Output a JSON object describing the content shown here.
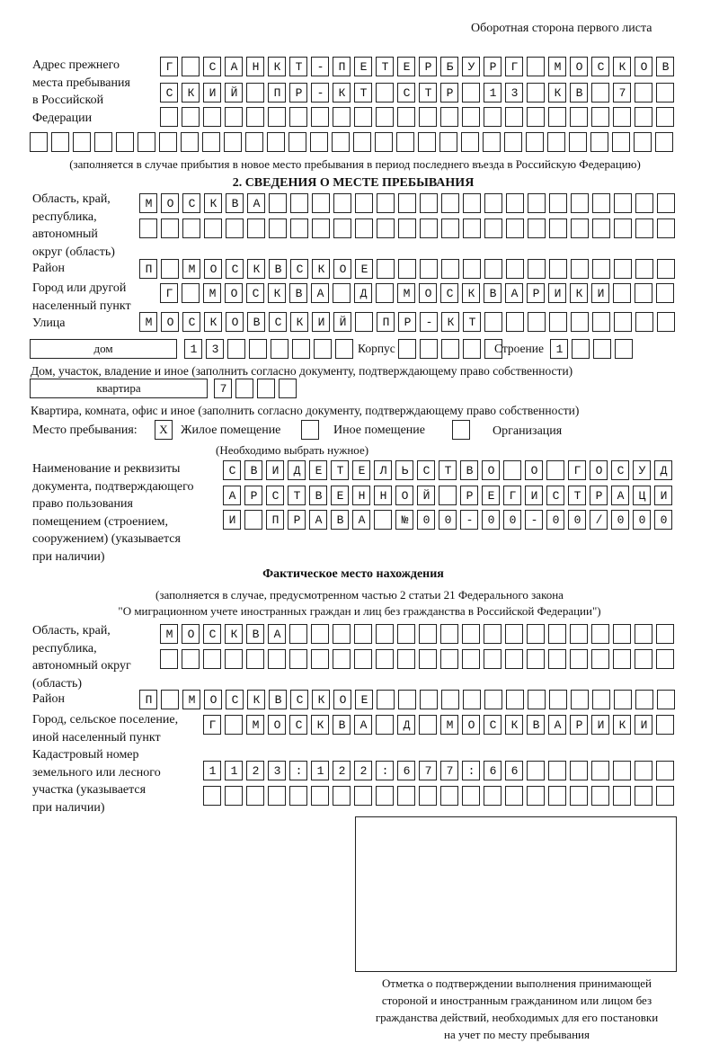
{
  "header": "Оборотная сторона первого листа",
  "previous_address": {
    "label": [
      "Адрес прежнего",
      "места пребывания",
      "в Российской",
      "Федерации"
    ],
    "rows": [
      "Г САНКТ-ПЕТЕРБУРГ МОСКОВ",
      "СКИЙ ПР-КТ СТР 13 КВ 7",
      "",
      ""
    ],
    "note": "(заполняется в случае прибытия в новое место пребывания в период последнего въезда в Российскую Федерацию)"
  },
  "section2": {
    "title": "2. СВЕДЕНИЯ О МЕСТЕ ПРЕБЫВАНИЯ",
    "region_label": [
      "Область, край,",
      "республика,",
      "автономный",
      "округ (область)"
    ],
    "region_rows": [
      "МОСКВА",
      ""
    ],
    "district_label": "Район",
    "district": "П МОСКВСКОЕ",
    "city_label": [
      "Город или другой",
      "населенный пункт"
    ],
    "city": "Г МОСКВА Д МОСКВАРИКИ",
    "street_label": "Улица",
    "street": "МОСКОВСКИЙ ПР-КТ",
    "house_type": "дом",
    "house": "13",
    "korpus_label": "Корпус",
    "korpus": "",
    "building_label": "Строение",
    "building": "1",
    "house_note": "Дом, участок, владение и иное (заполнить согласно документу, подтверждающему право собственности)",
    "apt_type": "квартира",
    "apt": "7",
    "apt_note": "Квартира, комната, офис и иное (заполнить согласно документу, подтверждающему право собственности)",
    "stay_label": "Место пребывания:",
    "stay_options": [
      {
        "label": "Жилое помещение",
        "mark": "X"
      },
      {
        "label": "Иное помещение",
        "mark": ""
      },
      {
        "label": "Организация",
        "mark": ""
      }
    ],
    "stay_note": "(Необходимо выбрать нужное)",
    "doc_label": [
      "Наименование и реквизиты",
      "документа, подтверждающего",
      "право пользования",
      "помещением (строением,",
      "сооружением) (указывается",
      "при наличии)"
    ],
    "doc_rows": [
      "СВИДЕТЕЛЬСТВО О ГОСУД",
      "АРСТВЕННОЙ РЕГИСТРАЦИ",
      "И ПРАВА №00-00-00/000"
    ]
  },
  "actual": {
    "title": "Фактическое место нахождения",
    "subtitle": [
      "(заполняется в случае, предусмотренном частью 2 статьи 21 Федерального закона",
      "\"О миграционном учете иностранных граждан и лиц без гражданства в Российской Федерации\")"
    ],
    "region_label": [
      "Область, край,",
      "республика,",
      "автономный округ",
      "(область)"
    ],
    "region_rows": [
      "МОСКВА",
      ""
    ],
    "district_label": "Район",
    "district": "П МОСКВСКОЕ",
    "city_label": [
      "Город, сельское поселение,",
      "иной населенный пункт"
    ],
    "city": "Г МОСКВА Д МОСКВАРИКИ",
    "cadastral_label": [
      "Кадастровый номер",
      "земельного или лесного",
      "участка (указывается",
      "при наличии)"
    ],
    "cadastral_rows": [
      "1123:122:677:66",
      ""
    ]
  },
  "stamp_caption": [
    "Отметка о подтверждении выполнения принимающей",
    "стороной и иностранным гражданином или лицом без",
    "гражданства действий, необходимых для его постановки",
    "на учет по месту пребывания"
  ]
}
